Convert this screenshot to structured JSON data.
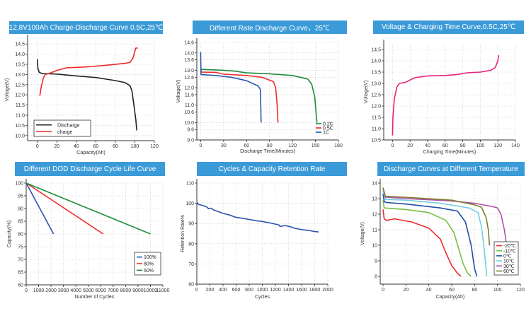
{
  "chart_data": [
    {
      "type": "line",
      "title": "12.8V100Ah Charge-Discharge Curve 0.5C,25℃",
      "xlabel": "Capacity(Ah)",
      "ylabel": "Voltage(V)",
      "xlim": [
        -10,
        120
      ],
      "ylim": [
        9.75,
        14.75
      ],
      "grid": true,
      "legend": "bottom-left",
      "xticks": [
        "0",
        "20",
        "40",
        "60",
        "80",
        "100",
        "120"
      ],
      "yticks": [
        "10.0",
        "10.5",
        "11.0",
        "11.5",
        "12.0",
        "12.5",
        "13.0",
        "13.5",
        "14.0",
        "14.5"
      ],
      "series": [
        {
          "name": "Discharge",
          "color": "#222222",
          "points": [
            [
              0,
              13.75
            ],
            [
              0.5,
              13.3
            ],
            [
              2,
              13.1
            ],
            [
              5,
              13.05
            ],
            [
              20,
              13.02
            ],
            [
              40,
              12.93
            ],
            [
              60,
              12.85
            ],
            [
              80,
              12.7
            ],
            [
              90,
              12.6
            ],
            [
              95,
              12.45
            ],
            [
              97,
              12.2
            ],
            [
              99,
              11.5
            ],
            [
              101,
              10.8
            ],
            [
              102,
              10.25
            ]
          ]
        },
        {
          "name": "charge",
          "color": "#ee2b2b",
          "points": [
            [
              2.5,
              11.95
            ],
            [
              4,
              12.4
            ],
            [
              6,
              12.8
            ],
            [
              8,
              13.0
            ],
            [
              12,
              13.05
            ],
            [
              20,
              13.2
            ],
            [
              30,
              13.33
            ],
            [
              50,
              13.37
            ],
            [
              70,
              13.45
            ],
            [
              90,
              13.55
            ],
            [
              95,
              13.6
            ],
            [
              98,
              13.8
            ],
            [
              101,
              14.3
            ],
            [
              103,
              14.3
            ]
          ]
        }
      ]
    },
    {
      "type": "line",
      "title": "Different  Rate Discharge Curve，25℃",
      "xlabel": "Discharge Time(Minutes)",
      "ylabel": "Voltage(V)",
      "xlim": [
        -5,
        180
      ],
      "ylim": [
        9.0,
        14.6
      ],
      "grid": true,
      "legend": "bottom-right",
      "xticks": [
        "0",
        "30",
        "60",
        "90",
        "120",
        "150",
        "180"
      ],
      "yticks": [
        "9.0",
        "9.6",
        "10.0",
        "10.6",
        "11.0",
        "11.6",
        "12.0",
        "12.6",
        "13.0",
        "13.6",
        "14.0",
        "14.6"
      ],
      "series": [
        {
          "name": "0.2C",
          "color": "#1e8c3a",
          "points": [
            [
              0,
              12.9
            ],
            [
              1,
              13.05
            ],
            [
              30,
              13.0
            ],
            [
              45,
              12.95
            ],
            [
              60,
              12.85
            ],
            [
              90,
              12.8
            ],
            [
              120,
              12.7
            ],
            [
              140,
              12.5
            ],
            [
              145,
              12.2
            ],
            [
              149,
              11.5
            ],
            [
              151,
              10.5
            ],
            [
              152,
              10.0
            ]
          ]
        },
        {
          "name": "0.5C",
          "color": "#ee2b2b",
          "points": [
            [
              0,
              12.9
            ],
            [
              20,
              12.88
            ],
            [
              30,
              12.78
            ],
            [
              60,
              12.7
            ],
            [
              80,
              12.6
            ],
            [
              95,
              12.35
            ],
            [
              98,
              12.0
            ],
            [
              100,
              11.0
            ],
            [
              101,
              10.0
            ]
          ]
        },
        {
          "name": "1C",
          "color": "#2a55b0",
          "points": [
            [
              0,
              14.05
            ],
            [
              0.5,
              12.75
            ],
            [
              20,
              12.7
            ],
            [
              40,
              12.6
            ],
            [
              60,
              12.4
            ],
            [
              75,
              12.1
            ],
            [
              78,
              11.9
            ],
            [
              78.5,
              11.0
            ],
            [
              79,
              10.0
            ]
          ]
        }
      ]
    },
    {
      "type": "line",
      "title": "Voltage & Charging Time Curve,0.5C,25℃",
      "xlabel": "Charging Time(Minutes)",
      "ylabel": "Voltage(V)",
      "xlim": [
        -10,
        140
      ],
      "ylim": [
        10.5,
        14.75
      ],
      "grid": true,
      "xticks": [
        "0",
        "20",
        "40",
        "60",
        "80",
        "100",
        "120",
        "140"
      ],
      "yticks": [
        "10.5",
        "11.0",
        "11.5",
        "12.0",
        "12.5",
        "13.0",
        "13.5",
        "14.0",
        "14.5"
      ],
      "series": [
        {
          "color": "#e8227a",
          "points": [
            [
              0,
              10.7
            ],
            [
              0.5,
              11.5
            ],
            [
              2,
              12.3
            ],
            [
              5,
              12.85
            ],
            [
              8,
              13.0
            ],
            [
              15,
              13.05
            ],
            [
              25,
              13.25
            ],
            [
              40,
              13.33
            ],
            [
              60,
              13.35
            ],
            [
              75,
              13.4
            ],
            [
              85,
              13.47
            ],
            [
              100,
              13.5
            ],
            [
              112,
              13.58
            ],
            [
              117,
              13.7
            ],
            [
              120,
              14.0
            ],
            [
              121,
              14.25
            ]
          ]
        }
      ]
    },
    {
      "type": "line",
      "title": "Different DOD Discharge Cycle Life Curve",
      "xlabel": "Number of Cycles",
      "ylabel": "Capacity(%)",
      "xlim": [
        0,
        11000
      ],
      "ylim": [
        60,
        100
      ],
      "grid": true,
      "legend": "bottom-right",
      "xticks": [
        "0",
        "1000",
        "2000",
        "3000",
        "4000",
        "5000",
        "6000",
        "7000",
        "8000",
        "9000",
        "10000",
        "11000"
      ],
      "yticks": [
        "60",
        "65",
        "70",
        "75",
        "80",
        "85",
        "90",
        "95",
        "100"
      ],
      "series": [
        {
          "name": "100%",
          "color": "#2a55b0",
          "points": [
            [
              0,
              100
            ],
            [
              2200,
              80
            ]
          ]
        },
        {
          "name": "80%",
          "color": "#ee2b2b",
          "points": [
            [
              0,
              100
            ],
            [
              6200,
              80
            ]
          ]
        },
        {
          "name": "50%",
          "color": "#1e8c3a",
          "points": [
            [
              0,
              100
            ],
            [
              10000,
              80
            ]
          ]
        }
      ]
    },
    {
      "type": "line",
      "title": "Cycles & Capacity Retention Rate",
      "xlabel": "Cycles",
      "ylabel": "Retention Rate%",
      "xlim": [
        0,
        2000
      ],
      "ylim": [
        60,
        110
      ],
      "grid": true,
      "xticks": [
        "0",
        "200",
        "400",
        "600",
        "800",
        "1000",
        "1200",
        "1400",
        "1600",
        "1800",
        "2000"
      ],
      "yticks": [
        "60",
        "70",
        "80",
        "90",
        "100",
        "110"
      ],
      "series": [
        {
          "color": "#2a55b0",
          "points": [
            [
              0,
              100.5
            ],
            [
              20,
              99.5
            ],
            [
              100,
              98.8
            ],
            [
              150,
              98.2
            ],
            [
              180,
              97.3
            ],
            [
              220,
              97.6
            ],
            [
              250,
              96.8
            ],
            [
              400,
              95
            ],
            [
              500,
              94.2
            ],
            [
              600,
              93
            ],
            [
              700,
              92.6
            ],
            [
              800,
              92
            ],
            [
              900,
              91.4
            ],
            [
              1000,
              91
            ],
            [
              1100,
              90.4
            ],
            [
              1200,
              89.7
            ],
            [
              1260,
              89.2
            ],
            [
              1270,
              88.5
            ],
            [
              1320,
              88.8
            ],
            [
              1350,
              89
            ],
            [
              1400,
              88.6
            ],
            [
              1440,
              88.3
            ],
            [
              1500,
              87.6
            ],
            [
              1600,
              87
            ],
            [
              1700,
              86.6
            ],
            [
              1800,
              86
            ],
            [
              1860,
              85.8
            ]
          ]
        }
      ]
    },
    {
      "type": "line",
      "title": "Discharge Curves at Different Temperature",
      "xlabel": "Capacity(Ah)",
      "ylabel": "Voltage(V)",
      "xlim": [
        -2.5,
        120
      ],
      "ylim": [
        7.5,
        14
      ],
      "grid": true,
      "legend": "bottom-right",
      "xticks": [
        "0",
        "20",
        "40",
        "60",
        "80",
        "100",
        "120"
      ],
      "yticks": [
        "8",
        "9",
        "10",
        "11",
        "12",
        "13",
        "14"
      ],
      "series": [
        {
          "name": "-20℃",
          "color": "#ee2b2b",
          "points": [
            [
              0,
              12.3
            ],
            [
              1,
              11.7
            ],
            [
              3,
              11.6
            ],
            [
              10,
              11.7
            ],
            [
              25,
              11.5
            ],
            [
              40,
              11.1
            ],
            [
              50,
              10.4
            ],
            [
              55,
              9.5
            ],
            [
              60,
              8.7
            ],
            [
              65,
              8.2
            ],
            [
              68,
              8.0
            ]
          ]
        },
        {
          "name": "-10℃",
          "color": "#77c043",
          "points": [
            [
              0,
              12.9
            ],
            [
              1,
              12.4
            ],
            [
              20,
              12.3
            ],
            [
              40,
              12.1
            ],
            [
              55,
              11.6
            ],
            [
              62,
              10.8
            ],
            [
              66,
              9.8
            ],
            [
              70,
              8.8
            ],
            [
              74,
              8.2
            ],
            [
              77,
              8.0
            ]
          ]
        },
        {
          "name": "0℃",
          "color": "#1f4fa5",
          "points": [
            [
              0,
              13.3
            ],
            [
              1,
              12.8
            ],
            [
              3,
              12.75
            ],
            [
              20,
              12.65
            ],
            [
              50,
              12.4
            ],
            [
              65,
              12.2
            ],
            [
              72,
              11.5
            ],
            [
              77,
              10.0
            ],
            [
              80,
              8.5
            ],
            [
              82,
              8.0
            ]
          ]
        },
        {
          "name": "10℃",
          "color": "#73cfe0",
          "points": [
            [
              0,
              13.5
            ],
            [
              2,
              12.95
            ],
            [
              20,
              12.9
            ],
            [
              50,
              12.7
            ],
            [
              75,
              12.4
            ],
            [
              83,
              12.1
            ],
            [
              86,
              11.2
            ],
            [
              88,
              10
            ],
            [
              90,
              8.5
            ],
            [
              90.5,
              8.0
            ]
          ]
        },
        {
          "name": "30℃",
          "color": "#b24fb1",
          "points": [
            [
              0,
              13.7
            ],
            [
              2,
              13.1
            ],
            [
              20,
              13.0
            ],
            [
              60,
              12.85
            ],
            [
              80,
              12.7
            ],
            [
              95,
              12.5
            ],
            [
              100,
              12.4
            ],
            [
              103,
              12.0
            ],
            [
              106,
              11.0
            ],
            [
              108,
              10.0
            ]
          ]
        },
        {
          "name": "60℃",
          "color": "#7f7d2b",
          "points": [
            [
              0,
              13.7
            ],
            [
              2,
              13.15
            ],
            [
              20,
              13.08
            ],
            [
              60,
              12.9
            ],
            [
              80,
              12.6
            ],
            [
              86,
              12.45
            ],
            [
              90,
              11.8
            ],
            [
              92,
              11.0
            ],
            [
              93,
              10.0
            ]
          ]
        }
      ]
    }
  ]
}
